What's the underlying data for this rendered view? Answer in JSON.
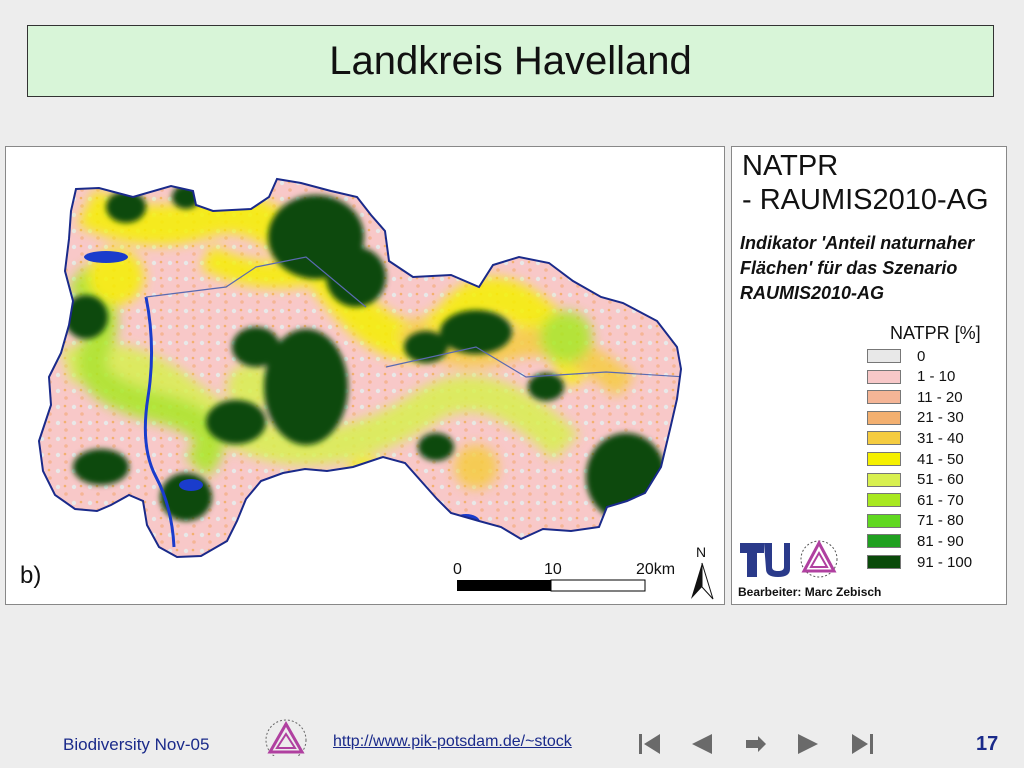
{
  "slide": {
    "title": "Landkreis Havelland"
  },
  "map": {
    "panel_label": "b)",
    "scale": {
      "ticks": [
        "0",
        "10",
        "20km"
      ]
    },
    "north": "N"
  },
  "legend": {
    "title_line1": "NATPR",
    "title_line2": "- RAUMIS2010-AG",
    "subtitle": "Indikator 'Anteil naturnaher Flächen' für das Szenario RAUMIS2010-AG",
    "header": "NATPR [%]",
    "classes": [
      {
        "label": "0",
        "color": "#e8e8e8"
      },
      {
        "label": "1 - 10",
        "color": "#f8c8c8"
      },
      {
        "label": "11 - 20",
        "color": "#f5b596"
      },
      {
        "label": "21 - 30",
        "color": "#f3b070"
      },
      {
        "label": "31 - 40",
        "color": "#f5cc40"
      },
      {
        "label": "41 - 50",
        "color": "#f5f000"
      },
      {
        "label": "51 - 60",
        "color": "#d8f050"
      },
      {
        "label": "61 - 70",
        "color": "#a8e820"
      },
      {
        "label": "71 - 80",
        "color": "#60d820"
      },
      {
        "label": "81 - 90",
        "color": "#20a020"
      },
      {
        "label": "91 - 100",
        "color": "#0a4a0a"
      }
    ],
    "author": "Bearbeiter: Marc Zebisch"
  },
  "footer": {
    "left_text": "Biodiversity Nov-05",
    "link": "http://www.pik-potsdam.de/~stock",
    "page": "17"
  },
  "colors": {
    "title_bg": "#d8f5d8",
    "water": "#1a3ccc",
    "footer_text": "#1a2a8a"
  }
}
